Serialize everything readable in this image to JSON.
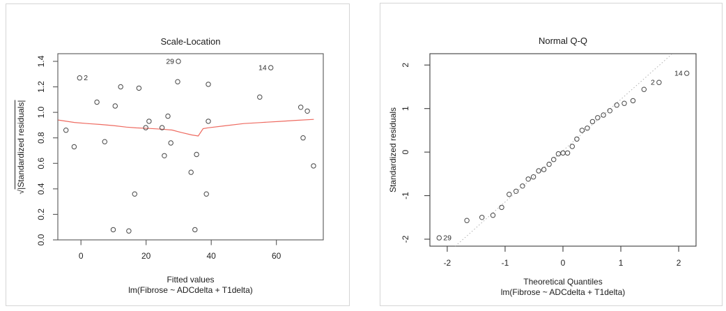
{
  "page": {
    "background": "#ffffff"
  },
  "chart_data": [
    {
      "type": "scatter",
      "title": "Scale-Location",
      "xlabel": "Fitted values",
      "sublabel": "lm(Fibrose ~ ADCdelta + T1delta)",
      "ylabel": "√|Standardized residuals|",
      "ylabel_parts": {
        "radical": "√",
        "arg": "|Standardized residuals|"
      },
      "xlim": [
        -7.1,
        74.4
      ],
      "ylim": [
        0,
        1.46
      ],
      "xticks": [
        0,
        20,
        40,
        60
      ],
      "xtick_labels": [
        "0",
        "20",
        "40",
        "60"
      ],
      "yticks": [
        0.0,
        0.2,
        0.4,
        0.6,
        0.8,
        1.0,
        1.2,
        1.4
      ],
      "ytick_labels": [
        "0.0",
        "0.2",
        "0.4",
        "0.6",
        "0.8",
        "1.0",
        "1.2",
        "1.4"
      ],
      "grid": false,
      "points": [
        [
          -4.6,
          0.86
        ],
        [
          -2.1,
          0.73
        ],
        [
          -0.4,
          1.27
        ],
        [
          4.9,
          1.08
        ],
        [
          7.3,
          0.77
        ],
        [
          9.9,
          0.08
        ],
        [
          10.5,
          1.05
        ],
        [
          12.2,
          1.2
        ],
        [
          14.7,
          0.07
        ],
        [
          16.5,
          0.36
        ],
        [
          17.8,
          1.19
        ],
        [
          19.9,
          0.88
        ],
        [
          20.9,
          0.93
        ],
        [
          24.9,
          0.88
        ],
        [
          25.6,
          0.66
        ],
        [
          26.7,
          0.97
        ],
        [
          27.6,
          0.76
        ],
        [
          29.7,
          1.24
        ],
        [
          29.9,
          1.4
        ],
        [
          33.8,
          0.53
        ],
        [
          35.0,
          0.08
        ],
        [
          35.5,
          0.67
        ],
        [
          38.5,
          0.36
        ],
        [
          39.1,
          0.93
        ],
        [
          39.1,
          1.22
        ],
        [
          54.9,
          1.12
        ],
        [
          58.3,
          1.35
        ],
        [
          67.5,
          1.04
        ],
        [
          68.2,
          0.8
        ],
        [
          69.5,
          1.01
        ],
        [
          71.4,
          0.58
        ]
      ],
      "labeled_points": [
        {
          "label": "2",
          "x": -0.4,
          "y": 1.27,
          "side": "right"
        },
        {
          "label": "29",
          "x": 29.9,
          "y": 1.4,
          "side": "left"
        },
        {
          "label": "14",
          "x": 58.3,
          "y": 1.35,
          "side": "left"
        }
      ],
      "smooth_line": {
        "color": "#ee6a60",
        "points": [
          [
            -7.0,
            0.94
          ],
          [
            -2,
            0.921
          ],
          [
            2,
            0.912
          ],
          [
            6,
            0.905
          ],
          [
            10,
            0.896
          ],
          [
            14,
            0.884
          ],
          [
            17,
            0.878
          ],
          [
            21,
            0.874
          ],
          [
            25,
            0.868
          ],
          [
            28,
            0.861
          ],
          [
            31,
            0.841
          ],
          [
            34,
            0.823
          ],
          [
            36,
            0.815
          ],
          [
            37.5,
            0.872
          ],
          [
            39,
            0.879
          ],
          [
            44,
            0.894
          ],
          [
            50,
            0.912
          ],
          [
            55,
            0.92
          ],
          [
            61,
            0.929
          ],
          [
            66,
            0.937
          ],
          [
            71.5,
            0.945
          ]
        ]
      },
      "marker_color": "#454545",
      "frame_color": "#565656"
    },
    {
      "type": "scatter",
      "title": "Normal Q-Q",
      "xlabel": "Theoretical Quantiles",
      "sublabel": "lm(Fibrose ~ ADCdelta + T1delta)",
      "ylabel": "Standardized residuals",
      "xlim": [
        -2.3,
        2.3
      ],
      "ylim": [
        -2.16,
        2.26
      ],
      "xticks": [
        -2,
        -1,
        0,
        1,
        2
      ],
      "xtick_labels": [
        "-2",
        "-1",
        "0",
        "1",
        "2"
      ],
      "yticks": [
        -2,
        -1,
        0,
        1,
        2
      ],
      "ytick_labels": [
        "-2",
        "-1",
        "0",
        "1",
        "2"
      ],
      "grid": false,
      "points": [
        [
          -2.14,
          -1.97
        ],
        [
          -1.66,
          -1.57
        ],
        [
          -1.4,
          -1.5
        ],
        [
          -1.21,
          -1.45
        ],
        [
          -1.06,
          -1.27
        ],
        [
          -0.93,
          -0.97
        ],
        [
          -0.81,
          -0.9
        ],
        [
          -0.7,
          -0.78
        ],
        [
          -0.6,
          -0.62
        ],
        [
          -0.51,
          -0.57
        ],
        [
          -0.42,
          -0.43
        ],
        [
          -0.33,
          -0.4
        ],
        [
          -0.24,
          -0.28
        ],
        [
          -0.16,
          -0.17
        ],
        [
          -0.08,
          -0.04
        ],
        [
          0.0,
          -0.02
        ],
        [
          0.08,
          -0.02
        ],
        [
          0.16,
          0.13
        ],
        [
          0.24,
          0.3
        ],
        [
          0.33,
          0.5
        ],
        [
          0.42,
          0.55
        ],
        [
          0.51,
          0.7
        ],
        [
          0.6,
          0.79
        ],
        [
          0.7,
          0.85
        ],
        [
          0.81,
          0.95
        ],
        [
          0.93,
          1.08
        ],
        [
          1.06,
          1.12
        ],
        [
          1.21,
          1.18
        ],
        [
          1.4,
          1.44
        ],
        [
          1.66,
          1.6
        ],
        [
          2.14,
          1.81
        ]
      ],
      "labeled_points": [
        {
          "label": "29",
          "x": -2.14,
          "y": -1.97,
          "side": "right"
        },
        {
          "label": "2",
          "x": 1.66,
          "y": 1.6,
          "side": "left"
        },
        {
          "label": "14",
          "x": 2.14,
          "y": 1.81,
          "side": "left"
        }
      ],
      "ref_line": {
        "style": "dotted",
        "color": "#b0b0b0",
        "from": [
          -1.86,
          -2.16
        ],
        "to": [
          1.89,
          2.26
        ]
      },
      "marker_color": "#454545",
      "frame_color": "#3d3d3d"
    }
  ]
}
